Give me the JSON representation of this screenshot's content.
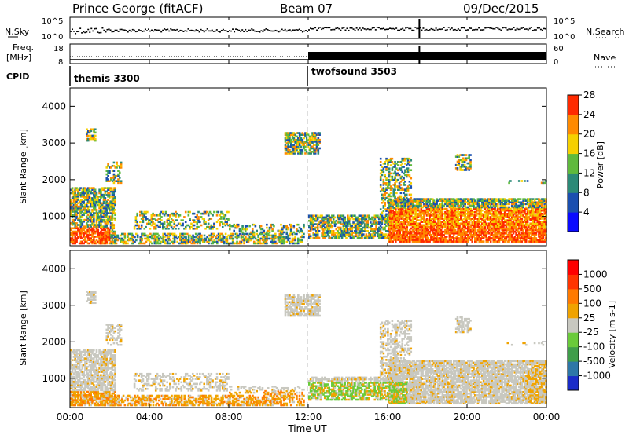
{
  "header": {
    "station": "Prince George (fitACF)",
    "beam": "Beam 07",
    "date": "09/Dec/2015"
  },
  "noise_panel": {
    "left_label": "N.Sky",
    "right_label": "N.Search",
    "tick_top": "10^5",
    "tick_bottom": "10^0"
  },
  "freq_panel": {
    "label_line1": "Freq.",
    "label_line2": "[MHz]",
    "left_ticks": [
      "18",
      "8"
    ],
    "right_ticks": [
      "60",
      "0"
    ],
    "right_label": "Nave"
  },
  "cpid_panel": {
    "label": "CPID",
    "programs": [
      {
        "name": "themis 3300",
        "start": "00:00"
      },
      {
        "name": "twofsound 3503",
        "start": "12:00"
      }
    ]
  },
  "chart_data": [
    {
      "type": "heatmap",
      "parameter": "Power",
      "ylabel": "Slant Range [km]",
      "ylim": [
        200,
        4500
      ],
      "y_ticks": [
        "1000",
        "2000",
        "3000",
        "4000"
      ],
      "xlim": [
        "00:00",
        "24:00"
      ],
      "colorbar": {
        "label": "Power [dB]",
        "ticks": [
          "4",
          "8",
          "12",
          "16",
          "20",
          "24",
          "28"
        ],
        "colors": [
          "#0a0aff",
          "#1a4fb0",
          "#2b8a77",
          "#5fba3c",
          "#f5d000",
          "#ff8a00",
          "#ff2a00"
        ]
      }
    },
    {
      "type": "heatmap",
      "parameter": "Velocity",
      "ylabel": "Slant Range [km]",
      "ylim": [
        200,
        4500
      ],
      "y_ticks": [
        "1000",
        "2000",
        "3000",
        "4000"
      ],
      "xlim": [
        "00:00",
        "24:00"
      ],
      "colorbar": {
        "label": "Velocity [m s-1]",
        "ticks": [
          "1000",
          "500",
          "100",
          "25",
          "-25",
          "-100",
          "-500",
          "-1000"
        ],
        "colors": [
          "#1a2cc8",
          "#2d77a8",
          "#3f9e4a",
          "#6acb3a",
          "#c8c8c0",
          "#f0a300",
          "#ff7a00",
          "#ff3500",
          "#ff0000"
        ]
      }
    }
  ],
  "x_axis": {
    "ticks": [
      "00:00",
      "04:00",
      "08:00",
      "12:00",
      "16:00",
      "20:00",
      "00:00"
    ],
    "label": "Time UT"
  }
}
